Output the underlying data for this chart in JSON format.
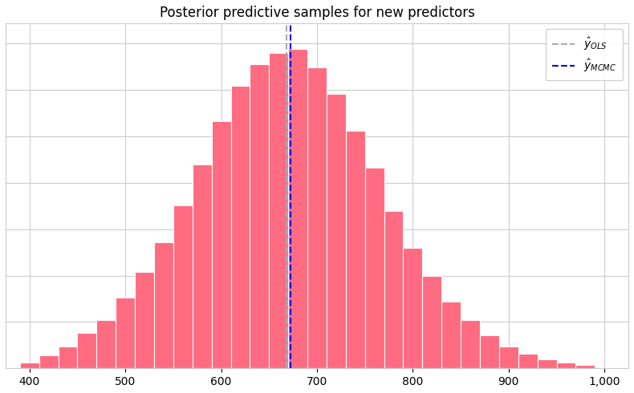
{
  "title": "Posterior predictive samples for new predictors",
  "bar_color": "#FF6B80",
  "bar_edgecolor": "white",
  "xlim": [
    375,
    1025
  ],
  "xticks": [
    400,
    500,
    600,
    700,
    800,
    900,
    1000
  ],
  "xticklabels": [
    "400",
    "500",
    "600",
    "700",
    "800",
    "900",
    "1,000"
  ],
  "vline_ols": 668,
  "vline_mcmc": 672,
  "vline_ols_color": "#aaaaaa",
  "vline_mcmc_color": "#0000EE",
  "vline_style": "--",
  "legend_ols_label": "$\\hat{y}_{OLS}$",
  "legend_mcmc_label": "$\\hat{y}_{MCMC}$",
  "bin_left": [
    390,
    410,
    430,
    450,
    470,
    490,
    510,
    530,
    550,
    570,
    590,
    610,
    630,
    650,
    670,
    690,
    710,
    730,
    750,
    770,
    790,
    810,
    830,
    850,
    870,
    890,
    910,
    930,
    950,
    970
  ],
  "bin_counts": [
    3,
    7,
    12,
    19,
    26,
    38,
    52,
    68,
    88,
    110,
    133,
    152,
    164,
    170,
    172,
    162,
    148,
    128,
    108,
    85,
    65,
    50,
    36,
    26,
    18,
    12,
    8,
    5,
    3,
    2
  ],
  "bin_width": 20,
  "background_color": "#ffffff",
  "grid_color": "#cccccc",
  "title_fontsize": 12
}
